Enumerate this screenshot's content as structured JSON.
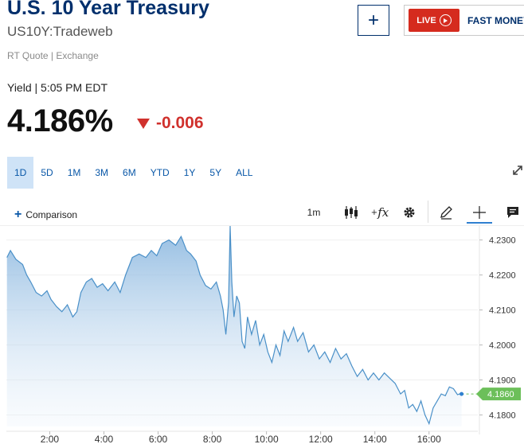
{
  "header": {
    "title": "U.S. 10 Year Treasury",
    "subtitle": "US10Y:Tradeweb",
    "rt_quote": "RT Quote | Exchange",
    "add_button": "+",
    "live_label": "LIVE",
    "fast_money_label": "FAST MONEY"
  },
  "quote": {
    "yield_line": "Yield | 5:05 PM EDT",
    "price": "4.186%",
    "change": "-0.006",
    "change_color": "#d0312d"
  },
  "tabs": [
    {
      "label": "1D",
      "active": true
    },
    {
      "label": "5D",
      "active": false
    },
    {
      "label": "1M",
      "active": false
    },
    {
      "label": "3M",
      "active": false
    },
    {
      "label": "6M",
      "active": false
    },
    {
      "label": "YTD",
      "active": false
    },
    {
      "label": "1Y",
      "active": false
    },
    {
      "label": "5Y",
      "active": false
    },
    {
      "label": "ALL",
      "active": false
    }
  ],
  "toolbar": {
    "comparison_label": "Comparison",
    "interval_label": "1m",
    "fx_label": "fx"
  },
  "chart_data": {
    "type": "area",
    "accent_color": "#4a90c8",
    "last_price_color": "#6cbf5a",
    "x_ticks": [
      "2:00",
      "4:00",
      "6:00",
      "8:00",
      "10:00",
      "12:00",
      "14:00",
      "16:00"
    ],
    "y_ticks": [
      "4.2300",
      "4.2200",
      "4.2100",
      "4.2000",
      "4.1900",
      "4.1800"
    ],
    "last_value_label": "4.1860",
    "last_value": 4.186,
    "ylim": [
      4.1767,
      4.234
    ],
    "x_range_hours": [
      0.4,
      17.8
    ],
    "series": [
      {
        "values": [
          [
            0.42,
            4.225
          ],
          [
            0.55,
            4.227
          ],
          [
            0.75,
            4.2245
          ],
          [
            1.0,
            4.223
          ],
          [
            1.15,
            4.22
          ],
          [
            1.3,
            4.218
          ],
          [
            1.5,
            4.215
          ],
          [
            1.7,
            4.214
          ],
          [
            1.9,
            4.2155
          ],
          [
            2.05,
            4.213
          ],
          [
            2.25,
            4.211
          ],
          [
            2.45,
            4.2095
          ],
          [
            2.65,
            4.2115
          ],
          [
            2.85,
            4.208
          ],
          [
            3.0,
            4.2095
          ],
          [
            3.15,
            4.215
          ],
          [
            3.35,
            4.218
          ],
          [
            3.55,
            4.219
          ],
          [
            3.75,
            4.2165
          ],
          [
            3.95,
            4.2175
          ],
          [
            4.15,
            4.2155
          ],
          [
            4.4,
            4.218
          ],
          [
            4.6,
            4.215
          ],
          [
            4.8,
            4.22
          ],
          [
            5.05,
            4.225
          ],
          [
            5.3,
            4.226
          ],
          [
            5.55,
            4.225
          ],
          [
            5.75,
            4.227
          ],
          [
            5.95,
            4.2255
          ],
          [
            6.15,
            4.229
          ],
          [
            6.4,
            4.23
          ],
          [
            6.65,
            4.2285
          ],
          [
            6.85,
            4.231
          ],
          [
            7.05,
            4.227
          ],
          [
            7.2,
            4.226
          ],
          [
            7.4,
            4.224
          ],
          [
            7.55,
            4.22
          ],
          [
            7.75,
            4.217
          ],
          [
            7.95,
            4.216
          ],
          [
            8.15,
            4.218
          ],
          [
            8.3,
            4.214
          ],
          [
            8.4,
            4.21
          ],
          [
            8.5,
            4.203
          ],
          [
            8.6,
            4.212
          ],
          [
            8.66,
            4.234
          ],
          [
            8.72,
            4.218
          ],
          [
            8.8,
            4.208
          ],
          [
            8.9,
            4.214
          ],
          [
            9.0,
            4.212
          ],
          [
            9.1,
            4.201
          ],
          [
            9.2,
            4.199
          ],
          [
            9.3,
            4.208
          ],
          [
            9.45,
            4.203
          ],
          [
            9.6,
            4.207
          ],
          [
            9.75,
            4.2
          ],
          [
            9.9,
            4.203
          ],
          [
            10.05,
            4.198
          ],
          [
            10.2,
            4.195
          ],
          [
            10.35,
            4.2
          ],
          [
            10.5,
            4.197
          ],
          [
            10.65,
            4.204
          ],
          [
            10.8,
            4.201
          ],
          [
            11.0,
            4.205
          ],
          [
            11.15,
            4.201
          ],
          [
            11.35,
            4.2035
          ],
          [
            11.55,
            4.198
          ],
          [
            11.75,
            4.2
          ],
          [
            11.95,
            4.196
          ],
          [
            12.15,
            4.198
          ],
          [
            12.35,
            4.195
          ],
          [
            12.55,
            4.199
          ],
          [
            12.75,
            4.196
          ],
          [
            12.95,
            4.1975
          ],
          [
            13.15,
            4.194
          ],
          [
            13.35,
            4.191
          ],
          [
            13.55,
            4.193
          ],
          [
            13.75,
            4.19
          ],
          [
            13.95,
            4.192
          ],
          [
            14.15,
            4.19
          ],
          [
            14.35,
            4.192
          ],
          [
            14.55,
            4.1905
          ],
          [
            14.75,
            4.189
          ],
          [
            14.95,
            4.186
          ],
          [
            15.1,
            4.187
          ],
          [
            15.25,
            4.182
          ],
          [
            15.4,
            4.183
          ],
          [
            15.55,
            4.181
          ],
          [
            15.7,
            4.184
          ],
          [
            15.85,
            4.18
          ],
          [
            16.0,
            4.1775
          ],
          [
            16.15,
            4.182
          ],
          [
            16.3,
            4.184
          ],
          [
            16.45,
            4.186
          ],
          [
            16.6,
            4.1855
          ],
          [
            16.75,
            4.188
          ],
          [
            16.9,
            4.1875
          ],
          [
            17.05,
            4.1858
          ],
          [
            17.2,
            4.1862
          ]
        ]
      }
    ]
  }
}
